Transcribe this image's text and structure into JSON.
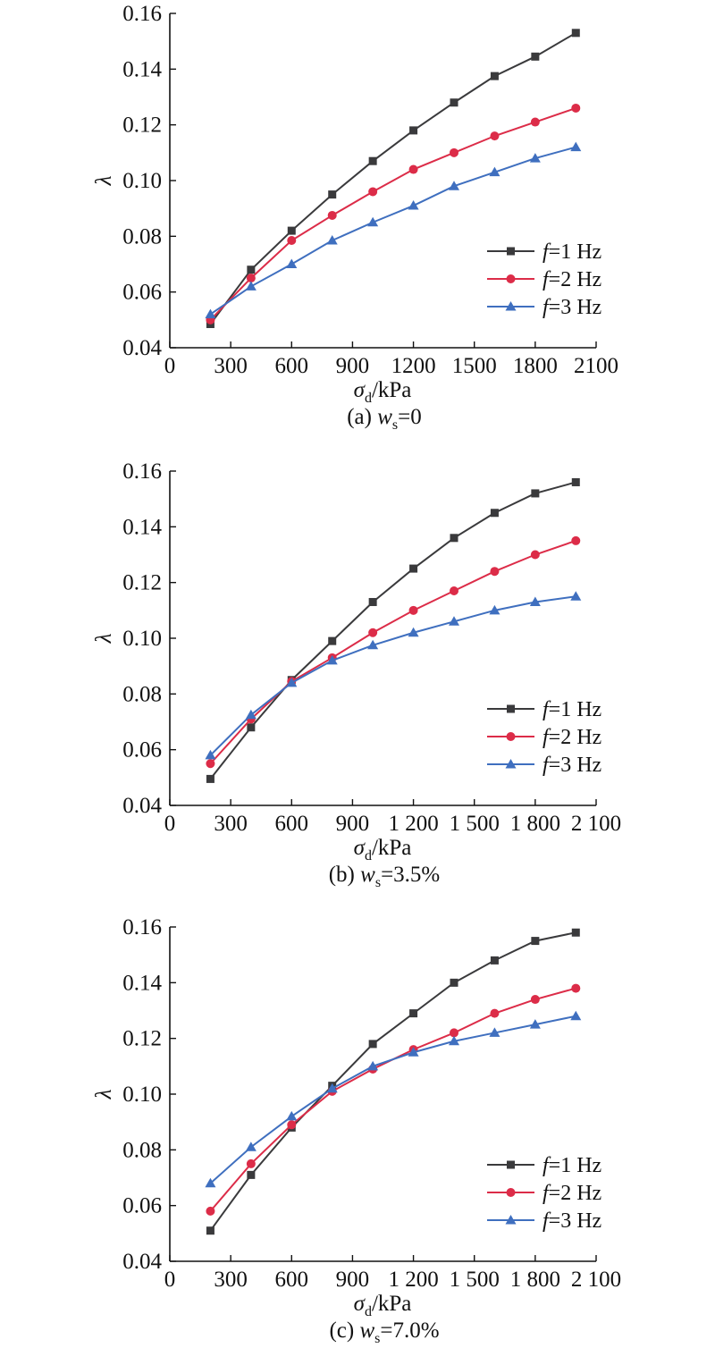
{
  "colors": {
    "f1": "#3a3a3c",
    "f2": "#dc2c48",
    "f3": "#3f6fbf"
  },
  "chart_data": [
    {
      "type": "line",
      "panel_label": "(a)",
      "caption_prefix": "(a) ",
      "caption_var": "w",
      "caption_sub": "s",
      "caption_value": "=0",
      "xlabel_var": "σ",
      "xlabel_sub": "d",
      "xlabel_unit": "/kPa",
      "ylabel": "λ",
      "xlim": [
        0,
        2100
      ],
      "ylim": [
        0.04,
        0.16
      ],
      "xticks": [
        0,
        300,
        600,
        900,
        1200,
        1500,
        1800,
        2100
      ],
      "xtick_labels": [
        "0",
        "300",
        "600",
        "900",
        "1200",
        "1500",
        "1800",
        "2100"
      ],
      "yticks": [
        0.04,
        0.06,
        0.08,
        0.1,
        0.12,
        0.14,
        0.16
      ],
      "ytick_labels": [
        "0.04",
        "0.06",
        "0.08",
        "0.10",
        "0.12",
        "0.14",
        "0.16"
      ],
      "x": [
        200,
        400,
        600,
        800,
        1000,
        1200,
        1400,
        1600,
        1800,
        2000
      ],
      "series": [
        {
          "name": "f=1 Hz",
          "label_var": "f",
          "label_rest": "=1 Hz",
          "color_key": "f1",
          "marker": "square",
          "values": [
            0.0485,
            0.068,
            0.082,
            0.095,
            0.107,
            0.118,
            0.128,
            0.1375,
            0.1445,
            0.153
          ]
        },
        {
          "name": "f=2 Hz",
          "label_var": "f",
          "label_rest": "=2 Hz",
          "color_key": "f2",
          "marker": "circle",
          "values": [
            0.05,
            0.065,
            0.0785,
            0.0875,
            0.096,
            0.104,
            0.11,
            0.116,
            0.121,
            0.126
          ]
        },
        {
          "name": "f=3 Hz",
          "label_var": "f",
          "label_rest": "=3 Hz",
          "color_key": "f3",
          "marker": "triangle",
          "values": [
            0.052,
            0.062,
            0.07,
            0.0785,
            0.085,
            0.091,
            0.098,
            0.103,
            0.108,
            0.112
          ]
        }
      ],
      "legend": "lower-right",
      "grid": false
    },
    {
      "type": "line",
      "panel_label": "(b)",
      "caption_prefix": "(b) ",
      "caption_var": "w",
      "caption_sub": "s",
      "caption_value": "=3.5%",
      "xlabel_var": "σ",
      "xlabel_sub": "d",
      "xlabel_unit": "/kPa",
      "ylabel": "λ",
      "xlim": [
        0,
        2100
      ],
      "ylim": [
        0.04,
        0.16
      ],
      "xticks": [
        0,
        300,
        600,
        900,
        1200,
        1500,
        1800,
        2100
      ],
      "xtick_labels": [
        "0",
        "300",
        "600",
        "900",
        "1 200",
        "1 500",
        "1 800",
        "2 100"
      ],
      "yticks": [
        0.04,
        0.06,
        0.08,
        0.1,
        0.12,
        0.14,
        0.16
      ],
      "ytick_labels": [
        "0.04",
        "0.06",
        "0.08",
        "0.10",
        "0.12",
        "0.14",
        "0.16"
      ],
      "x": [
        200,
        400,
        600,
        800,
        1000,
        1200,
        1400,
        1600,
        1800,
        2000
      ],
      "series": [
        {
          "name": "f=1 Hz",
          "label_var": "f",
          "label_rest": "=1 Hz",
          "color_key": "f1",
          "marker": "square",
          "values": [
            0.0495,
            0.068,
            0.085,
            0.099,
            0.113,
            0.125,
            0.136,
            0.145,
            0.152,
            0.156
          ]
        },
        {
          "name": "f=2 Hz",
          "label_var": "f",
          "label_rest": "=2 Hz",
          "color_key": "f2",
          "marker": "circle",
          "values": [
            0.055,
            0.071,
            0.0845,
            0.093,
            0.102,
            0.11,
            0.117,
            0.124,
            0.13,
            0.135
          ]
        },
        {
          "name": "f=3 Hz",
          "label_var": "f",
          "label_rest": "=3 Hz",
          "color_key": "f3",
          "marker": "triangle",
          "values": [
            0.058,
            0.0725,
            0.084,
            0.092,
            0.0975,
            0.102,
            0.106,
            0.11,
            0.113,
            0.115
          ]
        }
      ],
      "legend": "lower-right",
      "grid": false
    },
    {
      "type": "line",
      "panel_label": "(c)",
      "caption_prefix": "(c) ",
      "caption_var": "w",
      "caption_sub": "s",
      "caption_value": "=7.0%",
      "xlabel_var": "σ",
      "xlabel_sub": "d",
      "xlabel_unit": "/kPa",
      "ylabel": "λ",
      "xlim": [
        0,
        2100
      ],
      "ylim": [
        0.04,
        0.16
      ],
      "xticks": [
        0,
        300,
        600,
        900,
        1200,
        1500,
        1800,
        2100
      ],
      "xtick_labels": [
        "0",
        "300",
        "600",
        "900",
        "1 200",
        "1 500",
        "1 800",
        "2 100"
      ],
      "yticks": [
        0.04,
        0.06,
        0.08,
        0.1,
        0.12,
        0.14,
        0.16
      ],
      "ytick_labels": [
        "0.04",
        "0.06",
        "0.08",
        "0.10",
        "0.12",
        "0.14",
        "0.16"
      ],
      "x": [
        200,
        400,
        600,
        800,
        1000,
        1200,
        1400,
        1600,
        1800,
        2000
      ],
      "series": [
        {
          "name": "f=1 Hz",
          "label_var": "f",
          "label_rest": "=1 Hz",
          "color_key": "f1",
          "marker": "square",
          "values": [
            0.051,
            0.071,
            0.088,
            0.103,
            0.118,
            0.129,
            0.14,
            0.148,
            0.155,
            0.158
          ]
        },
        {
          "name": "f=2 Hz",
          "label_var": "f",
          "label_rest": "=2 Hz",
          "color_key": "f2",
          "marker": "circle",
          "values": [
            0.058,
            0.075,
            0.089,
            0.101,
            0.109,
            0.116,
            0.122,
            0.129,
            0.134,
            0.138
          ]
        },
        {
          "name": "f=3 Hz",
          "label_var": "f",
          "label_rest": "=3 Hz",
          "color_key": "f3",
          "marker": "triangle",
          "values": [
            0.068,
            0.081,
            0.092,
            0.102,
            0.11,
            0.115,
            0.119,
            0.122,
            0.125,
            0.128
          ]
        }
      ],
      "legend": "lower-right",
      "grid": false
    }
  ]
}
